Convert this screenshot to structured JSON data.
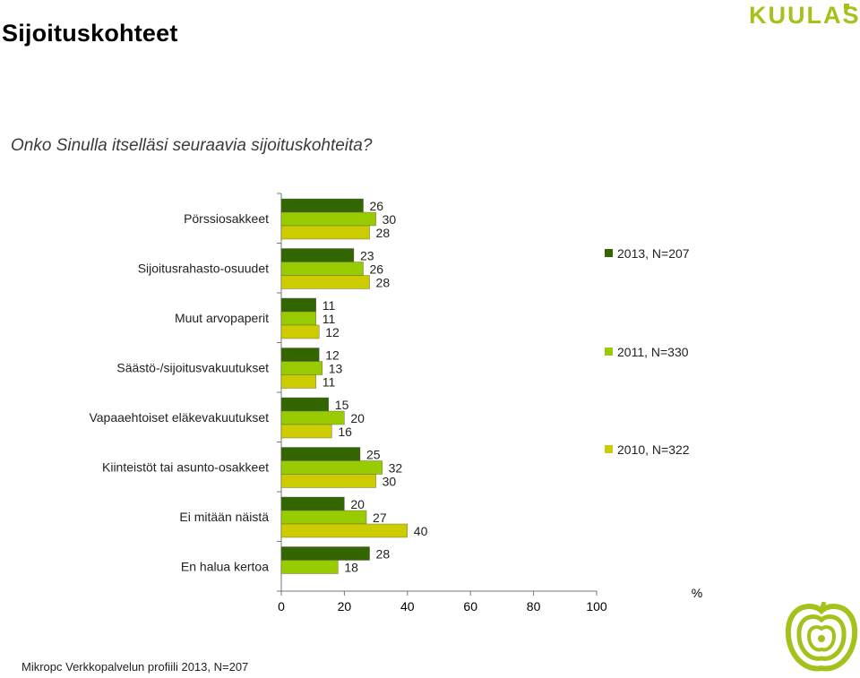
{
  "page": {
    "title": "Sijoituskohteet",
    "logo_text": "KUULAS",
    "question": "Onko Sinulla itselläsi seuraavia sijoituskohteita?",
    "footer": "Mikropc Verkkopalvelun profiili 2013, N=207",
    "colors": {
      "brand": "#a3c31c"
    }
  },
  "chart_data": {
    "type": "bar",
    "orientation": "horizontal",
    "categories": [
      "Pörssiosakkeet",
      "Sijoitusrahasto-osuudet",
      "Muut arvopaperit",
      "Säästö-/sijoitusvakuutukset",
      "Vapaaehtoiset eläkevakuutukset",
      "Kiinteistöt tai asunto-osakkeet",
      "Ei mitään näistä",
      "En halua kertoa"
    ],
    "series": [
      {
        "name": "2013, N=207",
        "color": "#336600",
        "values": [
          26,
          23,
          11,
          12,
          15,
          25,
          20,
          28
        ]
      },
      {
        "name": "2011, N=330",
        "color": "#99cc00",
        "values": [
          30,
          26,
          11,
          13,
          20,
          32,
          27,
          18
        ]
      },
      {
        "name": "2010, N=322",
        "color": "#cccc00",
        "values": [
          28,
          28,
          12,
          11,
          16,
          30,
          40,
          null
        ]
      }
    ],
    "xlabel": "%",
    "xlim": [
      0,
      100
    ],
    "xticks": [
      "0",
      "20",
      "40",
      "60",
      "80",
      "100"
    ],
    "legend_position": "right",
    "grid": false
  }
}
